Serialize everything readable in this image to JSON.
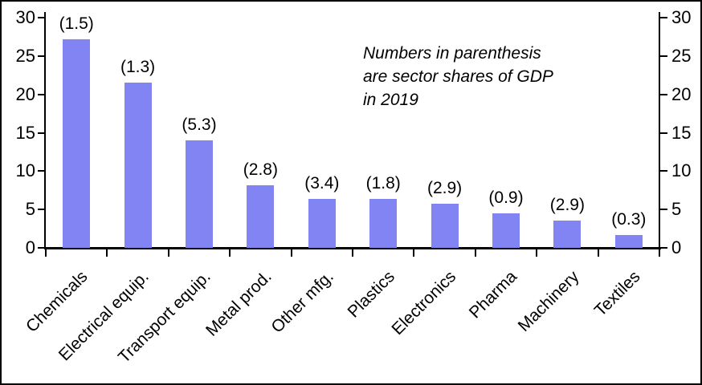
{
  "chart_data": {
    "type": "bar",
    "title": "",
    "xlabel": "",
    "ylabel": "",
    "categories": [
      "Chemicals",
      "Electrical equip.",
      "Transport equip.",
      "Metal prod.",
      "Other mfg.",
      "Plastics",
      "Electronics",
      "Pharma",
      "Machinery",
      "Textiles"
    ],
    "values": [
      27.2,
      21.5,
      14.0,
      8.2,
      6.4,
      6.4,
      5.8,
      4.5,
      3.6,
      1.7
    ],
    "bar_labels": [
      "(1.5)",
      "(1.3)",
      "(5.3)",
      "(2.8)",
      "(3.4)",
      "(1.8)",
      "(2.9)",
      "(0.9)",
      "(2.9)",
      "(0.3)"
    ],
    "ylim": [
      0,
      30
    ],
    "yticks": [
      0,
      5,
      10,
      15,
      20,
      25,
      30
    ],
    "y_axis_sides": [
      "left",
      "right"
    ],
    "grid": false,
    "legend": "none",
    "x_label_rotation_deg": 45,
    "bar_color": "#8184F2",
    "axis_color": "#000000",
    "annotation": "Numbers in parenthesis\nare sector shares of GDP\nin 2019"
  }
}
